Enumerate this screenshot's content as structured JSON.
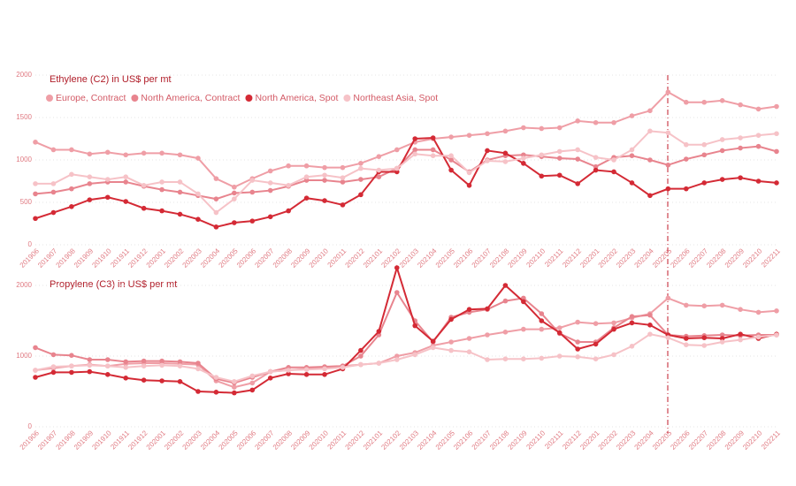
{
  "chart_data": [
    {
      "type": "line",
      "title": "Ethylene (C2) in US$ per mt",
      "categories": [
        "201906",
        "201907",
        "201908",
        "201909",
        "201910",
        "201911",
        "201912",
        "202001",
        "202002",
        "202003",
        "202004",
        "202005",
        "202006",
        "202007",
        "202008",
        "202009",
        "202010",
        "202011",
        "202012",
        "202101",
        "202102",
        "202103",
        "202104",
        "202105",
        "202106",
        "202107",
        "202108",
        "202109",
        "202110",
        "202111",
        "202112",
        "202201",
        "202202",
        "202203",
        "202204",
        "202205",
        "202206",
        "202207",
        "202208",
        "202209",
        "202210",
        "202211"
      ],
      "ylim": [
        0,
        2000
      ],
      "yticks": [
        0,
        500,
        1000,
        1500,
        2000
      ],
      "grid": true,
      "series": [
        {
          "name": "Europe, Contract",
          "color": "#ef9ea6",
          "values": [
            1210,
            1120,
            1120,
            1070,
            1090,
            1060,
            1080,
            1080,
            1060,
            1020,
            780,
            680,
            780,
            870,
            930,
            930,
            910,
            910,
            960,
            1040,
            1120,
            1210,
            1250,
            1270,
            1290,
            1310,
            1340,
            1380,
            1370,
            1380,
            1460,
            1440,
            1440,
            1520,
            1580,
            1800,
            1680,
            1680,
            1700,
            1650,
            1600,
            1630
          ]
        },
        {
          "name": "North America, Contract",
          "color": "#e8848e",
          "values": [
            600,
            620,
            660,
            720,
            740,
            740,
            690,
            650,
            620,
            580,
            540,
            610,
            620,
            640,
            690,
            760,
            760,
            740,
            770,
            800,
            900,
            1120,
            1120,
            1000,
            860,
            1000,
            1050,
            1060,
            1040,
            1020,
            1010,
            920,
            1030,
            1050,
            1000,
            940,
            1010,
            1060,
            1110,
            1140,
            1160,
            1100
          ]
        },
        {
          "name": "North America, Spot",
          "color": "#d42a35",
          "values": [
            310,
            380,
            450,
            530,
            560,
            510,
            430,
            400,
            360,
            300,
            210,
            260,
            280,
            330,
            400,
            550,
            520,
            470,
            590,
            860,
            860,
            1250,
            1260,
            880,
            700,
            1110,
            1080,
            960,
            810,
            820,
            720,
            880,
            860,
            730,
            580,
            660,
            660,
            730,
            770,
            790,
            750,
            730
          ]
        },
        {
          "name": "Northeast Asia, Spot",
          "color": "#f6c2c7",
          "values": [
            720,
            720,
            830,
            800,
            770,
            800,
            700,
            740,
            740,
            600,
            380,
            540,
            760,
            730,
            700,
            800,
            820,
            790,
            900,
            880,
            900,
            1070,
            1050,
            1050,
            850,
            990,
            980,
            1020,
            1060,
            1100,
            1120,
            1030,
            1000,
            1120,
            1340,
            1320,
            1180,
            1180,
            1240,
            1260,
            1290,
            1310
          ]
        }
      ]
    },
    {
      "type": "line",
      "title": "Propylene (C3) in US$ per mt",
      "categories": [
        "201906",
        "201907",
        "201908",
        "201909",
        "201910",
        "201911",
        "201912",
        "202001",
        "202002",
        "202003",
        "202004",
        "202005",
        "202006",
        "202007",
        "202008",
        "202009",
        "202010",
        "202011",
        "202012",
        "202101",
        "202102",
        "202103",
        "202104",
        "202105",
        "202106",
        "202107",
        "202108",
        "202109",
        "202110",
        "202111",
        "202112",
        "202201",
        "202202",
        "202203",
        "202204",
        "202205",
        "202206",
        "202207",
        "202208",
        "202209",
        "202210",
        "202211"
      ],
      "ylim": [
        0,
        2000
      ],
      "yticks": [
        0,
        1000,
        2000
      ],
      "grid": true,
      "series": [
        {
          "color": "#ef9ea6",
          "values": [
            800,
            830,
            860,
            880,
            860,
            890,
            900,
            900,
            890,
            880,
            650,
            560,
            620,
            780,
            800,
            820,
            840,
            860,
            880,
            900,
            1000,
            1050,
            1150,
            1200,
            1250,
            1300,
            1340,
            1380,
            1380,
            1400,
            1480,
            1460,
            1470,
            1540,
            1600,
            1820,
            1720,
            1710,
            1720,
            1660,
            1620,
            1640
          ]
        },
        {
          "color": "#e8848e",
          "values": [
            1120,
            1020,
            1010,
            950,
            950,
            920,
            930,
            930,
            920,
            900,
            680,
            620,
            700,
            780,
            840,
            840,
            850,
            860,
            1000,
            1300,
            1900,
            1500,
            1200,
            1550,
            1620,
            1660,
            1780,
            1820,
            1600,
            1320,
            1200,
            1200,
            1400,
            1560,
            1580,
            1300,
            1280,
            1290,
            1300,
            1290,
            1300,
            1300
          ]
        },
        {
          "color": "#d42a35",
          "values": [
            700,
            770,
            770,
            780,
            740,
            690,
            660,
            650,
            640,
            500,
            490,
            480,
            520,
            690,
            750,
            740,
            740,
            820,
            1080,
            1350,
            2250,
            1430,
            1210,
            1520,
            1660,
            1670,
            2000,
            1770,
            1500,
            1330,
            1100,
            1170,
            1380,
            1470,
            1440,
            1300,
            1250,
            1260,
            1250,
            1310,
            1250,
            1310
          ]
        },
        {
          "color": "#f6c2c7",
          "values": [
            800,
            850,
            860,
            870,
            860,
            840,
            860,
            870,
            860,
            820,
            700,
            640,
            720,
            780,
            800,
            810,
            820,
            840,
            880,
            900,
            950,
            1020,
            1120,
            1080,
            1060,
            950,
            960,
            960,
            970,
            1000,
            990,
            960,
            1020,
            1140,
            1310,
            1260,
            1160,
            1150,
            1200,
            1230,
            1270,
            1300
          ]
        }
      ]
    }
  ]
}
